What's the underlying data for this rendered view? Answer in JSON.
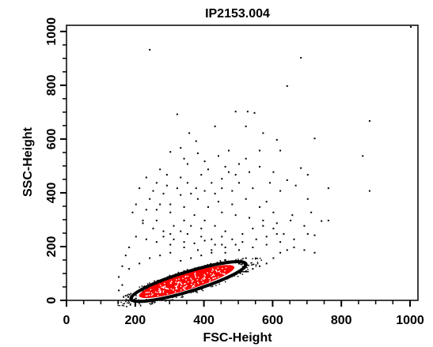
{
  "chart_data": {
    "type": "scatter",
    "title": "IP2153.004",
    "xlabel": "FSC-Height",
    "ylabel": "SSC-Height",
    "xlim": [
      0,
      1023
    ],
    "ylim": [
      0,
      1023
    ],
    "x_ticks": [
      0,
      200,
      400,
      600,
      800,
      1000
    ],
    "y_ticks": [
      0,
      200,
      400,
      600,
      800,
      1000
    ],
    "grid": false,
    "legend": "none",
    "gate": {
      "shape": "ellipse",
      "center": [
        355,
        70
      ],
      "x_extent": [
        170,
        510
      ],
      "y_extent": [
        5,
        150
      ],
      "color": "#000000"
    },
    "dense_population": {
      "color": "#ff0000",
      "center": [
        350,
        70
      ],
      "x_extent": [
        200,
        490
      ],
      "y_extent": [
        20,
        130
      ]
    },
    "series": [
      {
        "color": "#000000",
        "points": [
          [
            240,
            935
          ],
          [
            1000,
            1020
          ],
          [
            680,
            905
          ],
          [
            640,
            800
          ],
          [
            880,
            670
          ],
          [
            860,
            540
          ],
          [
            880,
            410
          ],
          [
            720,
            605
          ],
          [
            760,
            420
          ],
          [
            740,
            298
          ],
          [
            525,
            705
          ],
          [
            545,
            700
          ],
          [
            490,
            705
          ],
          [
            320,
            695
          ],
          [
            430,
            650
          ],
          [
            355,
            625
          ],
          [
            375,
            595
          ],
          [
            330,
            570
          ],
          [
            300,
            555
          ],
          [
            520,
            650
          ],
          [
            570,
            625
          ],
          [
            610,
            600
          ],
          [
            560,
            560
          ],
          [
            620,
            560
          ],
          [
            520,
            530
          ],
          [
            400,
            520
          ],
          [
            350,
            510
          ],
          [
            270,
            490
          ],
          [
            230,
            460
          ],
          [
            210,
            420
          ],
          [
            290,
            470
          ],
          [
            680,
            495
          ],
          [
            700,
            470
          ],
          [
            640,
            450
          ],
          [
            590,
            440
          ],
          [
            620,
            410
          ],
          [
            665,
            430
          ],
          [
            700,
            380
          ],
          [
            580,
            370
          ],
          [
            655,
            320
          ],
          [
            710,
            330
          ],
          [
            720,
            245
          ],
          [
            760,
            300
          ],
          [
            330,
            460
          ],
          [
            390,
            470
          ],
          [
            450,
            455
          ],
          [
            500,
            440
          ],
          [
            540,
            420
          ],
          [
            470,
            480
          ],
          [
            420,
            440
          ],
          [
            375,
            420
          ],
          [
            330,
            395
          ],
          [
            280,
            400
          ],
          [
            240,
            380
          ],
          [
            200,
            360
          ],
          [
            190,
            330
          ],
          [
            220,
            290
          ],
          [
            260,
            300
          ],
          [
            300,
            330
          ],
          [
            340,
            350
          ],
          [
            380,
            380
          ],
          [
            430,
            400
          ],
          [
            480,
            410
          ],
          [
            520,
            380
          ],
          [
            560,
            350
          ],
          [
            600,
            330
          ],
          [
            650,
            300
          ],
          [
            690,
            280
          ],
          [
            700,
            250
          ],
          [
            660,
            230
          ],
          [
            620,
            220
          ],
          [
            580,
            210
          ],
          [
            540,
            200
          ],
          [
            500,
            190
          ],
          [
            460,
            180
          ],
          [
            420,
            180
          ],
          [
            380,
            190
          ],
          [
            340,
            200
          ],
          [
            300,
            210
          ],
          [
            260,
            220
          ],
          [
            230,
            230
          ],
          [
            200,
            240
          ],
          [
            180,
            200
          ],
          [
            170,
            170
          ],
          [
            160,
            130
          ],
          [
            180,
            120
          ],
          [
            210,
            140
          ],
          [
            240,
            160
          ],
          [
            270,
            170
          ],
          [
            300,
            180
          ],
          [
            330,
            150
          ],
          [
            360,
            160
          ],
          [
            390,
            170
          ],
          [
            420,
            190
          ],
          [
            450,
            210
          ],
          [
            480,
            230
          ],
          [
            510,
            250
          ],
          [
            540,
            270
          ],
          [
            570,
            280
          ],
          [
            600,
            270
          ],
          [
            630,
            250
          ],
          [
            660,
            200
          ],
          [
            690,
            190
          ],
          [
            720,
            180
          ],
          [
            150,
            90
          ],
          [
            160,
            60
          ],
          [
            150,
            40
          ],
          [
            170,
            20
          ],
          [
            200,
            10
          ],
          [
            230,
            5
          ],
          [
            520,
            110
          ],
          [
            540,
            120
          ],
          [
            560,
            130
          ],
          [
            580,
            140
          ],
          [
            600,
            160
          ],
          [
            620,
            180
          ],
          [
            640,
            190
          ],
          [
            500,
            140
          ],
          [
            520,
            160
          ],
          [
            460,
            260
          ],
          [
            430,
            280
          ],
          [
            400,
            300
          ],
          [
            370,
            320
          ],
          [
            340,
            300
          ],
          [
            310,
            280
          ],
          [
            280,
            260
          ],
          [
            250,
            270
          ],
          [
            220,
            300
          ],
          [
            260,
            340
          ],
          [
            300,
            360
          ],
          [
            350,
            440
          ],
          [
            410,
            490
          ],
          [
            460,
            500
          ],
          [
            500,
            510
          ],
          [
            440,
            540
          ],
          [
            470,
            560
          ],
          [
            380,
            550
          ],
          [
            340,
            530
          ],
          [
            600,
            480
          ],
          [
            560,
            500
          ],
          [
            530,
            480
          ],
          [
            490,
            470
          ],
          [
            450,
            420
          ],
          [
            410,
            350
          ],
          [
            450,
            330
          ],
          [
            490,
            320
          ],
          [
            530,
            310
          ],
          [
            570,
            300
          ],
          [
            610,
            290
          ],
          [
            480,
            360
          ],
          [
            440,
            370
          ],
          [
            400,
            410
          ],
          [
            360,
            400
          ],
          [
            320,
            420
          ],
          [
            290,
            430
          ],
          [
            260,
            440
          ],
          [
            250,
            410
          ],
          [
            270,
            360
          ],
          [
            230,
            340
          ],
          [
            350,
            250
          ],
          [
            390,
            240
          ],
          [
            420,
            230
          ],
          [
            450,
            240
          ],
          [
            390,
            270
          ],
          [
            360,
            280
          ],
          [
            330,
            260
          ],
          [
            300,
            250
          ],
          [
            280,
            240
          ],
          [
            310,
            230
          ],
          [
            340,
            220
          ],
          [
            370,
            215
          ],
          [
            400,
            225
          ],
          [
            430,
            210
          ],
          [
            460,
            200
          ],
          [
            490,
            210
          ],
          [
            510,
            220
          ],
          [
            550,
            230
          ],
          [
            580,
            240
          ],
          [
            610,
            250
          ]
        ]
      }
    ]
  }
}
